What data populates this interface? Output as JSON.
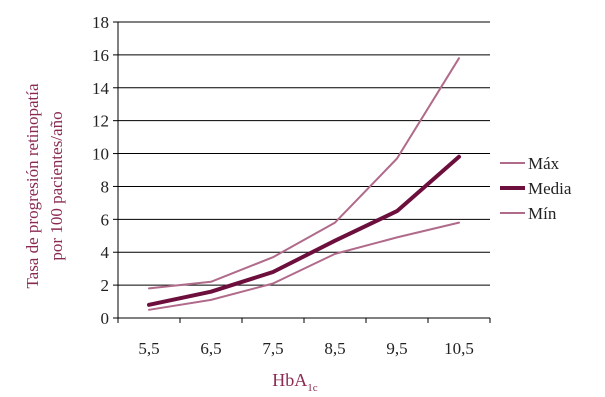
{
  "chart_data": {
    "type": "line",
    "title": "",
    "xlabel": "HbA",
    "xlabel_subscript": "1c",
    "ylabel_lines": [
      "Tasa de progresión retinopatía",
      "por 100 pacientes/año"
    ],
    "categories": [
      "5,5",
      "6,5",
      "7,5",
      "8,5",
      "9,5",
      "10,5"
    ],
    "ylim": [
      0,
      18
    ],
    "yticks": [
      0,
      2,
      4,
      6,
      8,
      10,
      12,
      14,
      16,
      18
    ],
    "grid": true,
    "legend_position": "right",
    "series": [
      {
        "name": "Máx",
        "color": "#b06a8a",
        "weight": "thin",
        "values": [
          1.8,
          2.2,
          3.7,
          5.8,
          9.7,
          15.8
        ]
      },
      {
        "name": "Media",
        "color": "#6d0f3c",
        "weight": "thick",
        "values": [
          0.8,
          1.6,
          2.8,
          4.7,
          6.5,
          9.8
        ]
      },
      {
        "name": "Mín",
        "color": "#b06a8a",
        "weight": "thin",
        "values": [
          0.5,
          1.1,
          2.1,
          3.9,
          4.9,
          5.8
        ]
      }
    ],
    "colors": {
      "axis_label": "#8a2a52",
      "axis_text": "#222222",
      "grid": "#000000"
    }
  }
}
